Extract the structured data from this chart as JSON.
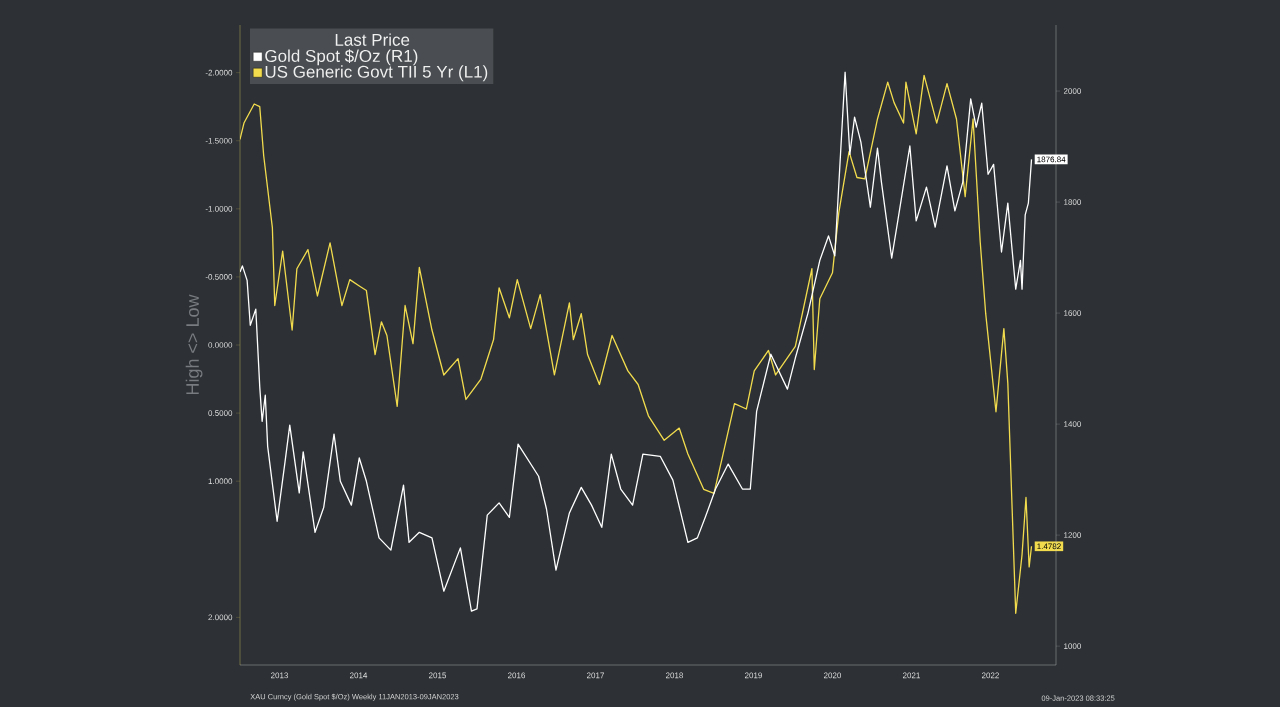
{
  "chart_data": {
    "type": "line",
    "legend_title": "Last Price",
    "ylabel": "High <> Low",
    "legend": "top left",
    "xlim": [
      2013.0,
      2023.33
    ],
    "xticks": [
      {
        "value": 2013.5,
        "label": "2013"
      },
      {
        "value": 2014.5,
        "label": "2014"
      },
      {
        "value": 2015.5,
        "label": "2015"
      },
      {
        "value": 2016.5,
        "label": "2016"
      },
      {
        "value": 2017.5,
        "label": "2017"
      },
      {
        "value": 2018.5,
        "label": "2018"
      },
      {
        "value": 2019.5,
        "label": "2019"
      },
      {
        "value": 2020.5,
        "label": "2020"
      },
      {
        "value": 2021.5,
        "label": "2021"
      },
      {
        "value": 2022.5,
        "label": "2022"
      }
    ],
    "ylim": [
      2.35,
      -2.35
    ],
    "yticks": [
      {
        "value": -2,
        "label": "-2.0000"
      },
      {
        "value": -1.5,
        "label": "-1.5000"
      },
      {
        "value": -1,
        "label": "-1.0000"
      },
      {
        "value": -0.5,
        "label": "-0.5000"
      },
      {
        "value": 0,
        "label": "0.0000"
      },
      {
        "value": 0.5,
        "label": "0.5000"
      },
      {
        "value": 1,
        "label": "1.0000"
      },
      {
        "value": 2,
        "label": "2.0000"
      }
    ],
    "y2lim": [
      966,
      2119
    ],
    "y2ticks": [
      1000,
      1200,
      1400,
      1600,
      1800,
      2000
    ],
    "series": [
      {
        "name": "Gold Spot $/Oz  (R1)",
        "color": "#ffffff",
        "axis": "y2",
        "x": [
          2013.0,
          2013.03,
          2013.09,
          2013.13,
          2013.2,
          2013.25,
          2013.28,
          2013.32,
          2013.35,
          2013.47,
          2013.57,
          2013.63,
          2013.75,
          2013.8,
          2013.95,
          2014.06,
          2014.19,
          2014.27,
          2014.41,
          2014.51,
          2014.6,
          2014.76,
          2014.91,
          2015.07,
          2015.14,
          2015.27,
          2015.43,
          2015.58,
          2015.79,
          2015.93,
          2016.0,
          2016.13,
          2016.28,
          2016.41,
          2016.52,
          2016.78,
          2016.88,
          2017.0,
          2017.17,
          2017.32,
          2017.45,
          2017.58,
          2017.7,
          2017.82,
          2017.97,
          2018.1,
          2018.32,
          2018.48,
          2018.67,
          2018.79,
          2018.89,
          2019.02,
          2019.18,
          2019.36,
          2019.46,
          2019.54,
          2019.72,
          2019.93,
          2020.03,
          2020.19,
          2020.34,
          2020.45,
          2020.53,
          2020.66,
          2020.72,
          2020.78,
          2020.86,
          2020.98,
          2021.07,
          2021.12,
          2021.25,
          2021.33,
          2021.48,
          2021.56,
          2021.69,
          2021.8,
          2021.95,
          2022.05,
          2022.15,
          2022.25,
          2022.32,
          2022.39,
          2022.47,
          2022.54,
          2022.64,
          2022.72,
          2022.82,
          2022.88,
          2022.9,
          2022.94,
          2022.98,
          2023.02
        ],
        "values": [
          1674,
          1685,
          1659,
          1578,
          1607,
          1467,
          1405,
          1452,
          1360,
          1225,
          1332,
          1398,
          1276,
          1350,
          1205,
          1250,
          1382,
          1297,
          1254,
          1339,
          1297,
          1195,
          1173,
          1290,
          1187,
          1205,
          1195,
          1099,
          1177,
          1063,
          1067,
          1236,
          1258,
          1232,
          1364,
          1306,
          1247,
          1137,
          1240,
          1286,
          1254,
          1214,
          1346,
          1283,
          1254,
          1346,
          1342,
          1299,
          1187,
          1195,
          1232,
          1283,
          1328,
          1283,
          1283,
          1423,
          1526,
          1463,
          1519,
          1600,
          1695,
          1739,
          1703,
          2034,
          1886,
          1953,
          1908,
          1791,
          1897,
          1836,
          1699,
          1769,
          1901,
          1766,
          1827,
          1755,
          1865,
          1784,
          1836,
          1986,
          1935,
          1978,
          1850,
          1868,
          1710,
          1798,
          1643,
          1695,
          1643,
          1777,
          1798,
          1876.84
        ],
        "value_labels": [
          null,
          null,
          null,
          null,
          null,
          null,
          null,
          null,
          null,
          null,
          null,
          null,
          null,
          null,
          null,
          null,
          null,
          null,
          null,
          null,
          null,
          null,
          null,
          null,
          null,
          null,
          null,
          null,
          null,
          null,
          null,
          null,
          null,
          null,
          null,
          null,
          null,
          null,
          null,
          null,
          null,
          null,
          null,
          null,
          null,
          null,
          null,
          null,
          null,
          null,
          null,
          null,
          null,
          null,
          null,
          null,
          null,
          null,
          null,
          null,
          null,
          null,
          null,
          null,
          null,
          null,
          null,
          null,
          null,
          null,
          null,
          null,
          null,
          null,
          null,
          null,
          null,
          null,
          null,
          null,
          null,
          null,
          null,
          null,
          null,
          null,
          null,
          null,
          null,
          null,
          null,
          "1876.84"
        ]
      },
      {
        "name": "US Generic Govt TII 5 Yr  (L1)",
        "color": "#f2dc4e",
        "x": [
          2013.0,
          2013.05,
          2013.18,
          2013.25,
          2013.3,
          2013.41,
          2013.44,
          2013.54,
          2013.6,
          2013.66,
          2013.72,
          2013.86,
          2013.98,
          2014.14,
          2014.29,
          2014.39,
          2014.52,
          2014.6,
          2014.71,
          2014.79,
          2014.86,
          2014.99,
          2015.09,
          2015.19,
          2015.27,
          2015.43,
          2015.58,
          2015.76,
          2015.86,
          2016.05,
          2016.21,
          2016.28,
          2016.41,
          2016.51,
          2016.68,
          2016.8,
          2016.98,
          2017.17,
          2017.22,
          2017.32,
          2017.4,
          2017.55,
          2017.71,
          2017.91,
          2018.04,
          2018.17,
          2018.37,
          2018.56,
          2018.67,
          2018.87,
          2019.0,
          2019.1,
          2019.26,
          2019.41,
          2019.51,
          2019.69,
          2019.78,
          2020.03,
          2020.24,
          2020.27,
          2020.34,
          2020.5,
          2020.58,
          2020.71,
          2020.81,
          2020.91,
          2021.07,
          2021.2,
          2021.28,
          2021.4,
          2021.43,
          2021.56,
          2021.66,
          2021.82,
          2021.95,
          2022.07,
          2022.18,
          2022.28,
          2022.37,
          2022.44,
          2022.57,
          2022.67,
          2022.72,
          2022.82,
          2022.9,
          2022.95,
          2022.99,
          2023.02
        ],
        "values": [
          -1.51,
          -1.63,
          -1.77,
          -1.75,
          -1.39,
          -0.86,
          -0.29,
          -0.69,
          -0.4,
          -0.11,
          -0.56,
          -0.7,
          -0.36,
          -0.75,
          -0.29,
          -0.48,
          -0.43,
          -0.4,
          0.07,
          -0.17,
          -0.07,
          0.45,
          -0.29,
          -0.01,
          -0.57,
          -0.11,
          0.22,
          0.1,
          0.4,
          0.25,
          -0.04,
          -0.42,
          -0.2,
          -0.48,
          -0.12,
          -0.37,
          0.22,
          -0.31,
          -0.04,
          -0.23,
          0.07,
          0.29,
          -0.07,
          0.19,
          0.29,
          0.52,
          0.7,
          0.61,
          0.8,
          1.06,
          1.09,
          0.84,
          0.43,
          0.47,
          0.19,
          0.04,
          0.22,
          0.01,
          -0.56,
          0.18,
          -0.34,
          -0.53,
          -0.97,
          -1.42,
          -1.23,
          -1.22,
          -1.66,
          -1.93,
          -1.78,
          -1.63,
          -1.93,
          -1.55,
          -1.98,
          -1.63,
          -1.92,
          -1.66,
          -1.09,
          -1.66,
          -0.76,
          -0.23,
          0.49,
          -0.12,
          0.28,
          1.97,
          1.54,
          1.12,
          1.63,
          1.4782
        ],
        "value_labels": [
          null,
          null,
          null,
          null,
          null,
          null,
          null,
          null,
          null,
          null,
          null,
          null,
          null,
          null,
          null,
          null,
          null,
          null,
          null,
          null,
          null,
          null,
          null,
          null,
          null,
          null,
          null,
          null,
          null,
          null,
          null,
          null,
          null,
          null,
          null,
          null,
          null,
          null,
          null,
          null,
          null,
          null,
          null,
          null,
          null,
          null,
          null,
          null,
          null,
          null,
          null,
          null,
          null,
          null,
          null,
          null,
          null,
          null,
          null,
          null,
          null,
          null,
          null,
          null,
          null,
          null,
          null,
          null,
          null,
          null,
          null,
          null,
          null,
          null,
          null,
          null,
          null,
          null,
          null,
          null,
          null,
          null,
          null,
          null,
          null,
          null,
          null,
          "1.4782"
        ]
      }
    ],
    "annotations": [
      "XAU Curncy (Gold Spot  $/Oz)  Weekly 11JAN2013-09JAN2023",
      "09-Jan-2023 08:33:25"
    ]
  }
}
